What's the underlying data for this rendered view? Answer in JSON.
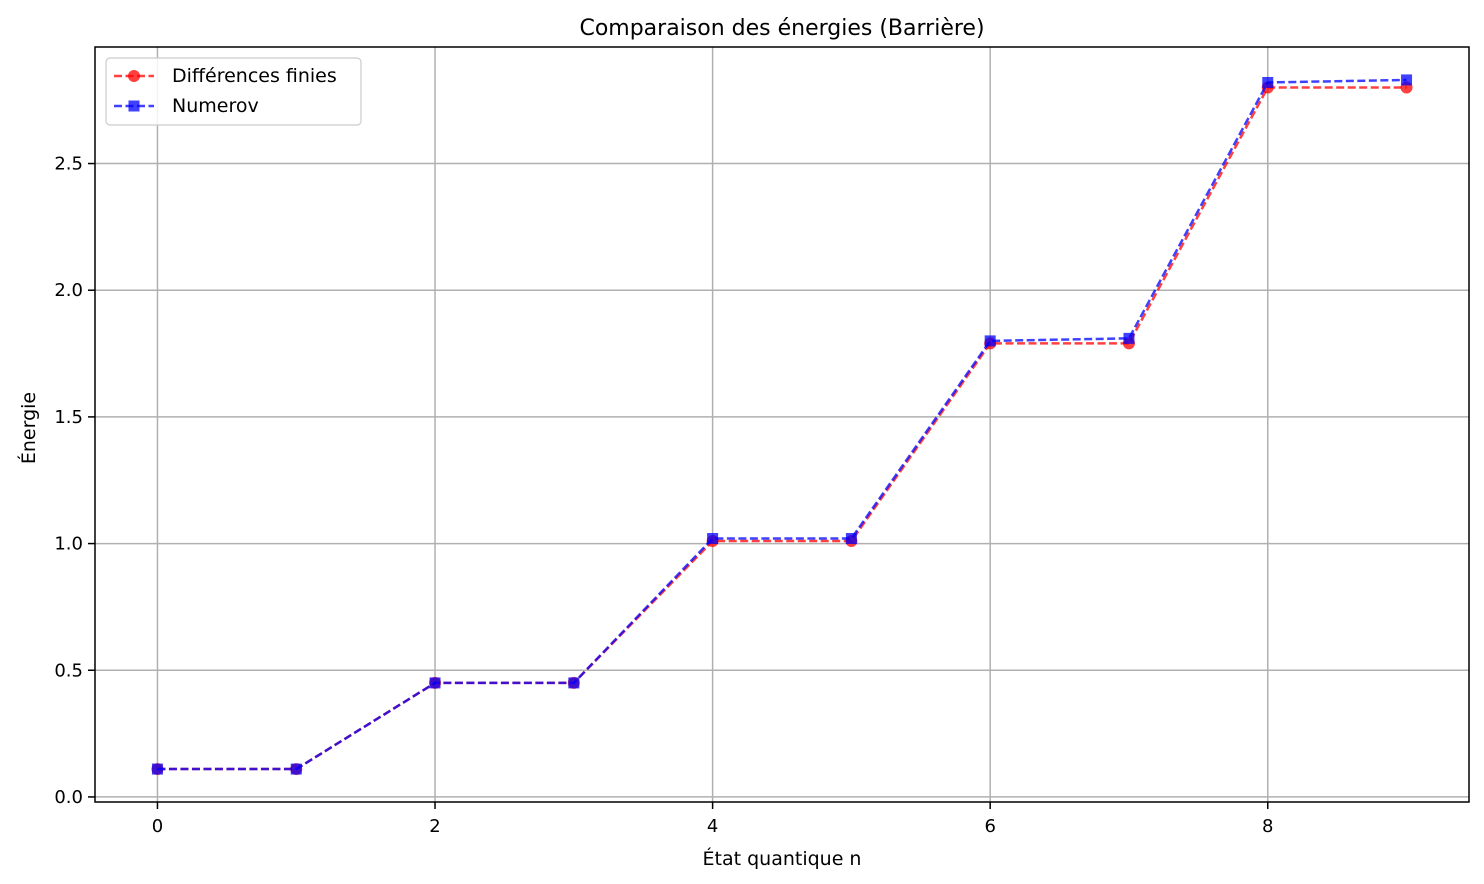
{
  "chart_data": {
    "type": "line",
    "title": "Comparaison des énergies (Barrière)",
    "xlabel": "État quantique n",
    "ylabel": "Énergie",
    "xlim": [
      -0.45,
      9.45
    ],
    "ylim": [
      -0.02,
      2.96
    ],
    "xticks": [
      0,
      2,
      4,
      6,
      8
    ],
    "xtick_labels": [
      "0",
      "2",
      "4",
      "6",
      "8"
    ],
    "yticks": [
      0.0,
      0.5,
      1.0,
      1.5,
      2.0,
      2.5
    ],
    "ytick_labels": [
      "0.0",
      "0.5",
      "1.0",
      "1.5",
      "2.0",
      "2.5"
    ],
    "grid": true,
    "legend_position": "upper-left",
    "x": [
      0,
      1,
      2,
      3,
      4,
      5,
      6,
      7,
      8,
      9
    ],
    "series": [
      {
        "name": "Différences finies",
        "values": [
          0.11,
          0.11,
          0.45,
          0.45,
          1.01,
          1.01,
          1.79,
          1.79,
          2.8,
          2.8
        ],
        "color": "#ff0000",
        "marker": "circle",
        "linestyle": "dashed"
      },
      {
        "name": "Numerov",
        "values": [
          0.11,
          0.11,
          0.45,
          0.45,
          1.02,
          1.02,
          1.8,
          1.81,
          2.82,
          2.83
        ],
        "color": "#0000ff",
        "marker": "square",
        "linestyle": "dashed"
      }
    ]
  }
}
